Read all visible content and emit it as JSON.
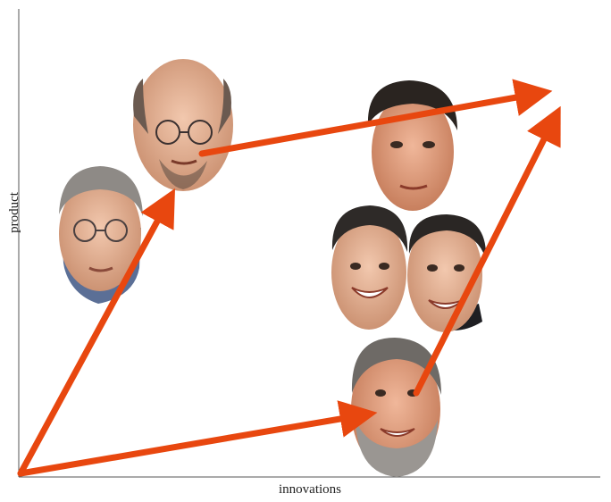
{
  "axes": {
    "x_label": "innovations",
    "y_label": "product"
  },
  "colors": {
    "arrow": "#E8470F",
    "axis": "#555555",
    "skin": "#E9B79B",
    "hair_dark": "#2A2420",
    "hair_gray": "#8E8A86",
    "shirt": "#1E1E22"
  },
  "people": [
    {
      "id": "person-bald-glasses",
      "icon": "face-bald-glasses-icon"
    },
    {
      "id": "person-gray-glasses",
      "icon": "face-gray-glasses-icon"
    },
    {
      "id": "person-dark-hair",
      "icon": "face-dark-hair-icon"
    },
    {
      "id": "person-smiling-left",
      "icon": "face-smiling-left-icon"
    },
    {
      "id": "person-smiling-right",
      "icon": "face-smiling-right-icon"
    },
    {
      "id": "person-gray-beard",
      "icon": "face-gray-beard-icon"
    }
  ]
}
